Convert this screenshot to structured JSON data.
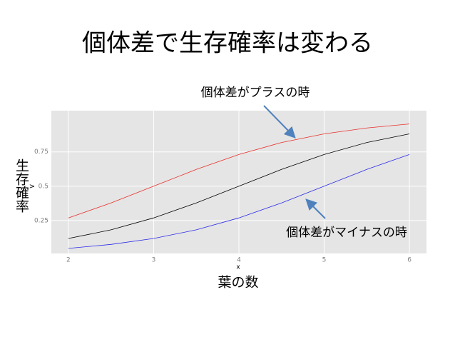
{
  "slide": {
    "title": "個体差で生存確率は変わる",
    "x_caption": "葉の数",
    "y_caption": "生存確率"
  },
  "chart_data": {
    "type": "line",
    "xlabel": "x",
    "ylabel": ">",
    "x": [
      2,
      2.5,
      3,
      3.5,
      4,
      4.5,
      5,
      5.5,
      6
    ],
    "series": [
      {
        "color": "#e8302a",
        "values": [
          0.269,
          0.378,
          0.5,
          0.622,
          0.731,
          0.818,
          0.881,
          0.924,
          0.953
        ]
      },
      {
        "color": "#000000",
        "values": [
          0.119,
          0.182,
          0.269,
          0.378,
          0.5,
          0.622,
          0.731,
          0.818,
          0.881
        ]
      },
      {
        "color": "#2a2ae8",
        "values": [
          0.047,
          0.076,
          0.119,
          0.182,
          0.269,
          0.378,
          0.5,
          0.622,
          0.731
        ]
      }
    ],
    "xlim": [
      1.8,
      6.2
    ],
    "ylim": [
      0.01,
      1.05
    ],
    "xticks": [
      2,
      3,
      4,
      5,
      6
    ],
    "yticks": [
      0.25,
      0.5,
      0.75
    ],
    "annotations": [
      {
        "text": "個体差がプラスの時"
      },
      {
        "text": "個体差がマイナスの時"
      }
    ],
    "grid": true
  }
}
